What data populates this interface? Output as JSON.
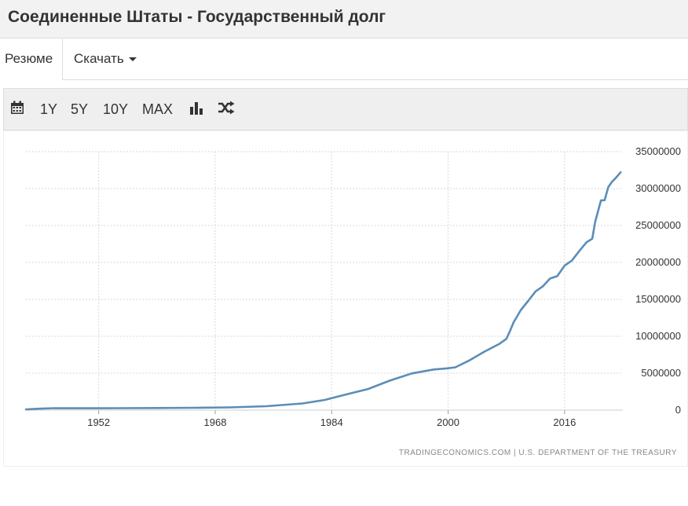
{
  "header": {
    "title": "Соединенные Штаты - Государственный долг"
  },
  "tabs": {
    "summary_label": "Резюме",
    "download_label": "Скачать"
  },
  "toolbar": {
    "calendar_icon": "calendar-icon",
    "ranges": [
      "1Y",
      "5Y",
      "10Y",
      "MAX"
    ],
    "chart_type_icon": "bar-chart-icon",
    "compare_icon": "shuffle-icon"
  },
  "colors": {
    "line": "#5b8db8",
    "grid": "#d9d9d9",
    "text": "#333333"
  },
  "chart_data": {
    "type": "line",
    "title": "",
    "xlabel": "",
    "ylabel": "",
    "xlim": [
      1942,
      2024
    ],
    "ylim": [
      0,
      35000000
    ],
    "grid": true,
    "y_axis_side": "right",
    "x_ticks": [
      1952,
      1968,
      1984,
      2000,
      2016
    ],
    "y_ticks": [
      0,
      5000000,
      10000000,
      15000000,
      20000000,
      25000000,
      30000000,
      35000000
    ],
    "source": "TRADINGECONOMICS.COM  |  U.S. DEPARTMENT OF THE TREASURY",
    "series": [
      {
        "x": [
          1942,
          1944,
          1946,
          1950,
          1955,
          1960,
          1965,
          1970,
          1975,
          1980,
          1983,
          1986,
          1989,
          1992,
          1995,
          1998,
          2000,
          2001,
          2003,
          2005,
          2007,
          2008,
          2008.5,
          2009,
          2010,
          2011,
          2012,
          2013,
          2014,
          2015,
          2016,
          2017,
          2018,
          2019,
          2019.8,
          2020.2,
          2021,
          2021.5,
          2022,
          2022.5,
          2023,
          2023.7
        ],
        "y": [
          100000,
          200000,
          270000,
          260000,
          270000,
          290000,
          320000,
          370000,
          530000,
          900000,
          1370000,
          2130000,
          2860000,
          4000000,
          4970000,
          5500000,
          5670000,
          5800000,
          6780000,
          7930000,
          8950000,
          9650000,
          10700000,
          11900000,
          13560000,
          14790000,
          16070000,
          16740000,
          17820000,
          18150000,
          19570000,
          20240000,
          21520000,
          22720000,
          23200000,
          25500000,
          28400000,
          28430000,
          30200000,
          30900000,
          31400000,
          32200000
        ]
      }
    ]
  }
}
